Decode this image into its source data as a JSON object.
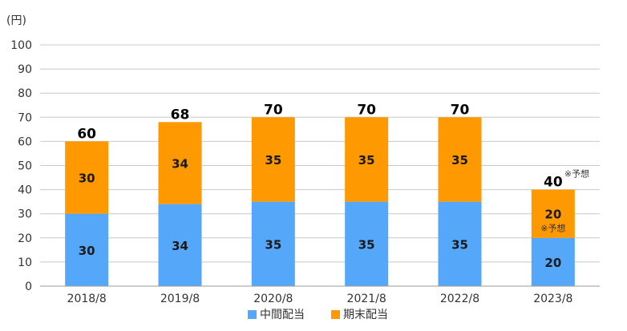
{
  "chart_data": {
    "type": "bar",
    "stacked": true,
    "unit_label": "(円)",
    "categories": [
      "2018/8",
      "2019/8",
      "2020/8",
      "2021/8",
      "2022/8",
      "2023/8"
    ],
    "series": [
      {
        "name": "中間配当",
        "color": "#55a8f9",
        "values": [
          30,
          34,
          35,
          35,
          35,
          20
        ]
      },
      {
        "name": "期末配当",
        "color": "#fe9901",
        "values": [
          30,
          34,
          35,
          35,
          35,
          20
        ]
      }
    ],
    "totals": [
      60,
      68,
      70,
      70,
      70,
      40
    ],
    "forecast_note": "※予想",
    "ylim": [
      0,
      100
    ],
    "yticks": [
      0,
      10,
      20,
      30,
      40,
      50,
      60,
      70,
      80,
      90,
      100
    ],
    "grid": true,
    "legend_position": "bottom"
  }
}
